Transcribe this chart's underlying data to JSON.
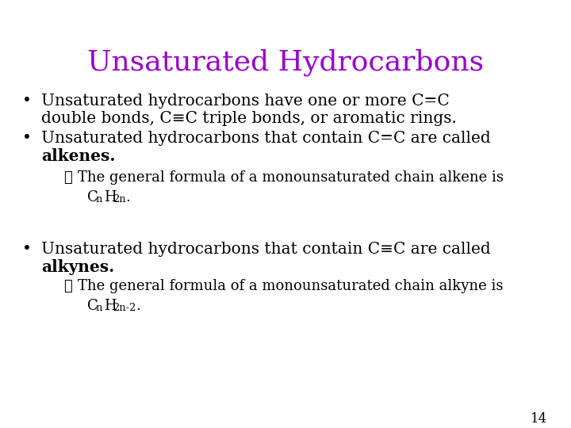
{
  "title": "Unsaturated Hydrocarbons",
  "title_color": "#9900CC",
  "title_fontsize": 26,
  "background_color": "#FFFFFF",
  "text_color": "#000000",
  "page_number": "14",
  "bullet1_line1": "Unsaturated hydrocarbons have one or more C=C",
  "bullet1_line2": "double bonds, C≡C triple bonds, or aromatic rings.",
  "bullet2_line1": "Unsaturated hydrocarbons that contain C=C are called",
  "bullet2_bold": "alkenes",
  "check1_line1": "The general formula of a monounsaturated chain alkene is",
  "bullet3_line1": "Unsaturated hydrocarbons that contain C≡C are called",
  "bullet3_bold": "alkynes",
  "check2_line1": "The general formula of a monounsaturated chain alkyne is",
  "body_fontsize": 14.5,
  "check_fontsize": 13.0,
  "small_fontsize": 13.0
}
